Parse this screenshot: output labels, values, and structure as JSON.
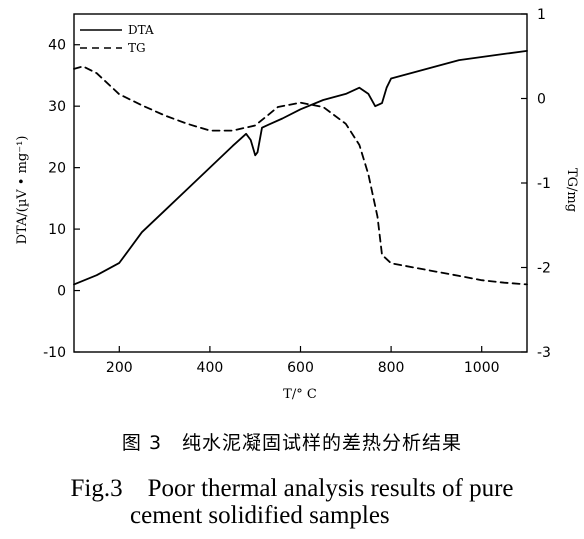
{
  "chart_data": {
    "type": "line",
    "xlabel": "T/° C",
    "ylabel_left": "DTA/(µV • mg⁻¹)",
    "ylabel_right": "TG/mg",
    "xlim": [
      100,
      1100
    ],
    "ylim_left": [
      -10,
      45
    ],
    "ylim_right": [
      -3,
      1
    ],
    "x_ticks": [
      200,
      400,
      600,
      800,
      1000
    ],
    "y_left_ticks": [
      -10,
      0,
      10,
      20,
      30,
      40
    ],
    "y_right_ticks": [
      -3,
      -2,
      -1,
      0,
      1
    ],
    "grid": false,
    "legend_position": "top-left",
    "series": [
      {
        "name": "DTA",
        "axis": "left",
        "style": "solid",
        "x": [
          100,
          150,
          200,
          215,
          250,
          300,
          350,
          400,
          450,
          480,
          490,
          500,
          505,
          515,
          530,
          560,
          600,
          650,
          700,
          730,
          750,
          765,
          780,
          790,
          800,
          850,
          900,
          950,
          1000,
          1050,
          1100
        ],
        "y": [
          1,
          2.5,
          4.5,
          6,
          9.5,
          13,
          16.5,
          20,
          23.5,
          25.5,
          24.5,
          22,
          22.5,
          26.5,
          27,
          28,
          29.5,
          31,
          32,
          33,
          32,
          30,
          30.5,
          33,
          34.5,
          35.5,
          36.5,
          37.5,
          38,
          38.5,
          39
        ]
      },
      {
        "name": "TG",
        "axis": "right",
        "style": "dashed",
        "x": [
          100,
          120,
          150,
          200,
          250,
          300,
          350,
          400,
          450,
          500,
          550,
          600,
          650,
          700,
          730,
          750,
          770,
          780,
          800,
          850,
          900,
          950,
          1000,
          1050,
          1100
        ],
        "y": [
          0.35,
          0.38,
          0.3,
          0.05,
          -0.08,
          -0.2,
          -0.3,
          -0.38,
          -0.38,
          -0.32,
          -0.1,
          -0.05,
          -0.1,
          -0.3,
          -0.55,
          -0.9,
          -1.4,
          -1.85,
          -1.95,
          -2.0,
          -2.05,
          -2.1,
          -2.15,
          -2.18,
          -2.2
        ]
      }
    ]
  },
  "caption": {
    "chinese": "图 3　纯水泥凝固试样的差热分析结果",
    "english_line1": "Fig.3　Poor thermal analysis results of pure",
    "english_line2": "cement solidified samples"
  }
}
